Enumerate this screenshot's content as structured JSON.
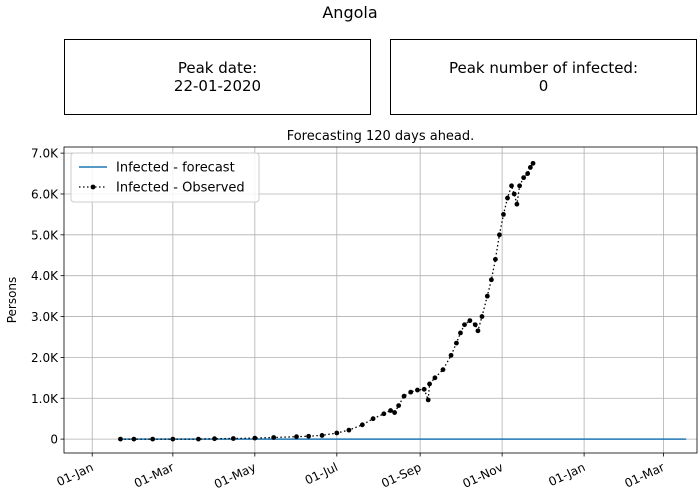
{
  "header": {
    "title": "Angola"
  },
  "peak_date": {
    "label": "Peak date:",
    "value": "22-01-2020"
  },
  "peak_infected": {
    "label": "Peak number of infected:",
    "value": "0"
  },
  "chart_data": {
    "type": "line",
    "title": "Forecasting 120 days ahead.",
    "xlabel": "",
    "ylabel": "Persons",
    "xlim": [
      "2019-12-11",
      "2021-03-26"
    ],
    "ylim": [
      -340,
      7150
    ],
    "x_ticks": [
      "2020-01-01",
      "2020-03-01",
      "2020-05-01",
      "2020-07-01",
      "2020-09-01",
      "2020-11-01",
      "2021-01-01",
      "2021-03-01"
    ],
    "x_tick_labels": [
      "01-Jan",
      "01-Mar",
      "01-May",
      "01-Jul",
      "01-Sep",
      "01-Nov",
      "01-Jan",
      "01-Mar"
    ],
    "y_ticks": [
      0,
      1000,
      2000,
      3000,
      4000,
      5000,
      6000,
      7000
    ],
    "y_tick_labels": [
      "0",
      "1.0K",
      "2.0K",
      "3.0K",
      "4.0K",
      "5.0K",
      "6.0K",
      "7.0K"
    ],
    "grid": true,
    "legend": "top-left",
    "series": [
      {
        "name": "Infected - forecast",
        "color": "#1f77b4",
        "style": "solid",
        "points": [
          [
            "2020-01-22",
            0
          ],
          [
            "2021-03-18",
            0
          ]
        ]
      },
      {
        "name": "Infected - Observed",
        "color": "#000000",
        "style": "dotted-markers",
        "points": [
          [
            "2020-01-22",
            0
          ],
          [
            "2020-02-01",
            0
          ],
          [
            "2020-02-15",
            0
          ],
          [
            "2020-03-01",
            0
          ],
          [
            "2020-03-20",
            0
          ],
          [
            "2020-04-01",
            10
          ],
          [
            "2020-04-15",
            15
          ],
          [
            "2020-05-01",
            25
          ],
          [
            "2020-05-15",
            40
          ],
          [
            "2020-06-01",
            60
          ],
          [
            "2020-06-10",
            70
          ],
          [
            "2020-06-20",
            90
          ],
          [
            "2020-07-01",
            150
          ],
          [
            "2020-07-10",
            220
          ],
          [
            "2020-07-20",
            350
          ],
          [
            "2020-07-28",
            500
          ],
          [
            "2020-08-05",
            620
          ],
          [
            "2020-08-10",
            700
          ],
          [
            "2020-08-13",
            650
          ],
          [
            "2020-08-16",
            820
          ],
          [
            "2020-08-20",
            1050
          ],
          [
            "2020-08-25",
            1150
          ],
          [
            "2020-08-30",
            1200
          ],
          [
            "2020-09-04",
            1220
          ],
          [
            "2020-09-07",
            960
          ],
          [
            "2020-09-08",
            1350
          ],
          [
            "2020-09-12",
            1500
          ],
          [
            "2020-09-18",
            1700
          ],
          [
            "2020-09-24",
            2050
          ],
          [
            "2020-09-28",
            2350
          ],
          [
            "2020-10-01",
            2600
          ],
          [
            "2020-10-04",
            2800
          ],
          [
            "2020-10-08",
            2900
          ],
          [
            "2020-10-12",
            2800
          ],
          [
            "2020-10-14",
            2650
          ],
          [
            "2020-10-17",
            3000
          ],
          [
            "2020-10-21",
            3500
          ],
          [
            "2020-10-24",
            3900
          ],
          [
            "2020-10-27",
            4400
          ],
          [
            "2020-10-30",
            5000
          ],
          [
            "2020-11-02",
            5500
          ],
          [
            "2020-11-05",
            5900
          ],
          [
            "2020-11-08",
            6200
          ],
          [
            "2020-11-10",
            6000
          ],
          [
            "2020-11-12",
            5750
          ],
          [
            "2020-11-14",
            6200
          ],
          [
            "2020-11-17",
            6400
          ],
          [
            "2020-11-20",
            6500
          ],
          [
            "2020-11-22",
            6650
          ],
          [
            "2020-11-24",
            6750
          ]
        ]
      }
    ]
  }
}
